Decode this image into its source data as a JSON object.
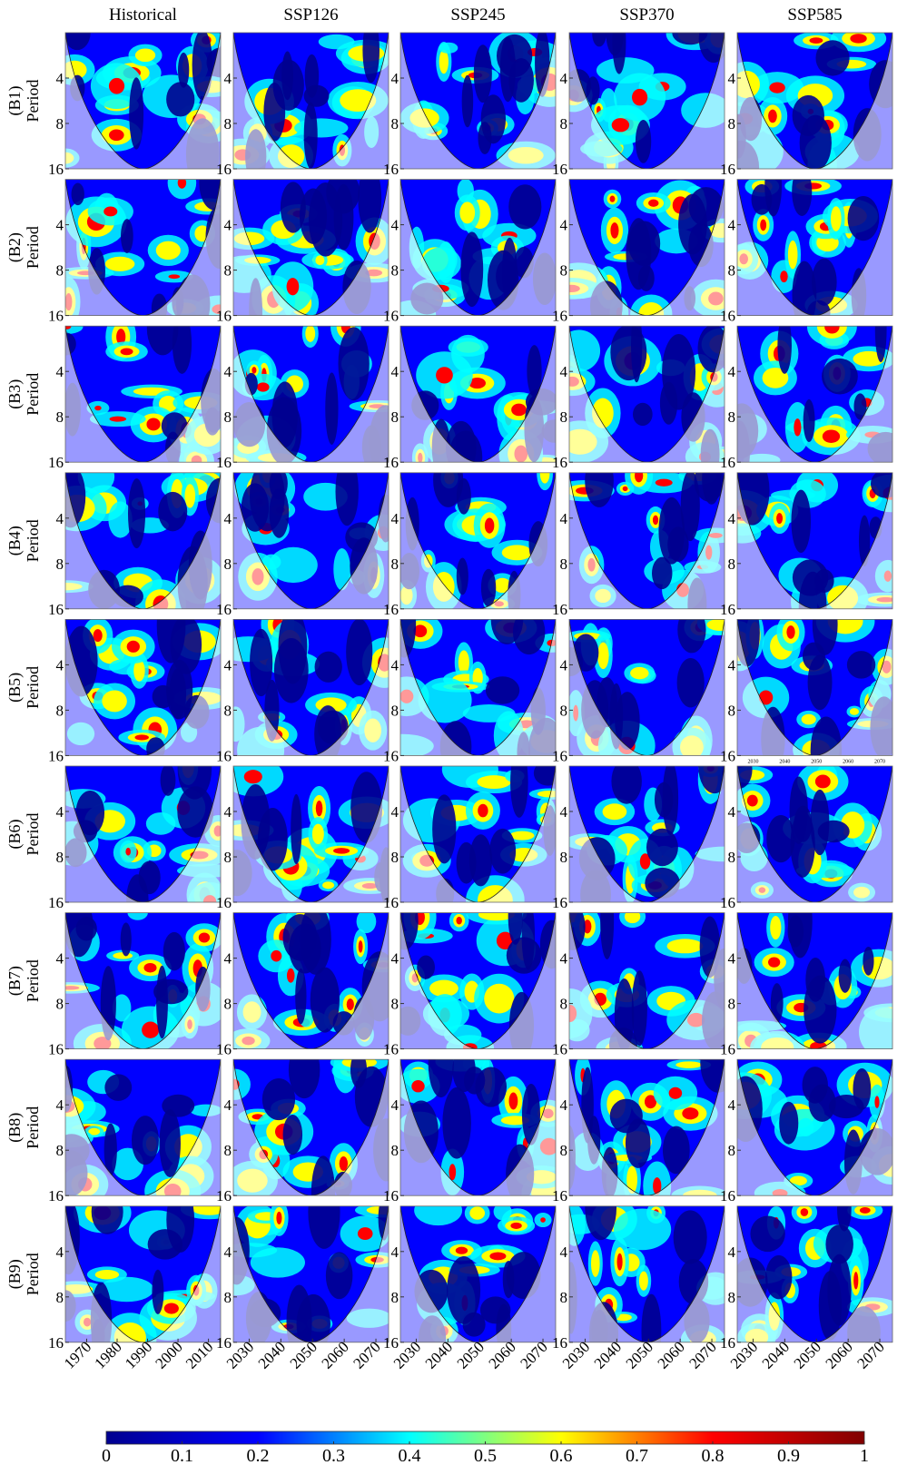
{
  "columns": [
    {
      "title": "Historical",
      "xlim": [
        1963,
        2014
      ],
      "xticks": [
        1970,
        1980,
        1990,
        2000,
        2010
      ]
    },
    {
      "title": "SSP126",
      "xlim": [
        2025,
        2074
      ],
      "xticks": [
        2030,
        2040,
        2050,
        2060,
        2070
      ]
    },
    {
      "title": "SSP245",
      "xlim": [
        2025,
        2074
      ],
      "xticks": [
        2030,
        2040,
        2050,
        2060,
        2070
      ]
    },
    {
      "title": "SSP370",
      "xlim": [
        2025,
        2074
      ],
      "xticks": [
        2030,
        2040,
        2050,
        2060,
        2070
      ]
    },
    {
      "title": "SSP585",
      "xlim": [
        2025,
        2074
      ],
      "xticks": [
        2030,
        2040,
        2050,
        2060,
        2070
      ]
    }
  ],
  "rows": [
    {
      "label": "(B1)"
    },
    {
      "label": "(B2)"
    },
    {
      "label": "(B3)"
    },
    {
      "label": "(B4)"
    },
    {
      "label": "(B5)",
      "inset_xticks": [
        2030,
        2040,
        2050,
        2060,
        2070
      ]
    },
    {
      "label": "(B6)"
    },
    {
      "label": "(B7)"
    },
    {
      "label": "(B8)"
    },
    {
      "label": "(B9)"
    }
  ],
  "ylabel": "Period",
  "ylim": [
    2,
    16
  ],
  "y_log": true,
  "yticks": [
    4,
    8,
    16
  ],
  "colorbar": {
    "lim": [
      0,
      1
    ],
    "ticks": [
      0,
      0.1,
      0.2,
      0.3,
      0.4,
      0.5,
      0.6,
      0.7,
      0.8,
      0.9,
      1
    ],
    "colors": [
      "#00008f",
      "#0000ff",
      "#00ffff",
      "#ffff00",
      "#ff0000",
      "#800000"
    ]
  }
}
